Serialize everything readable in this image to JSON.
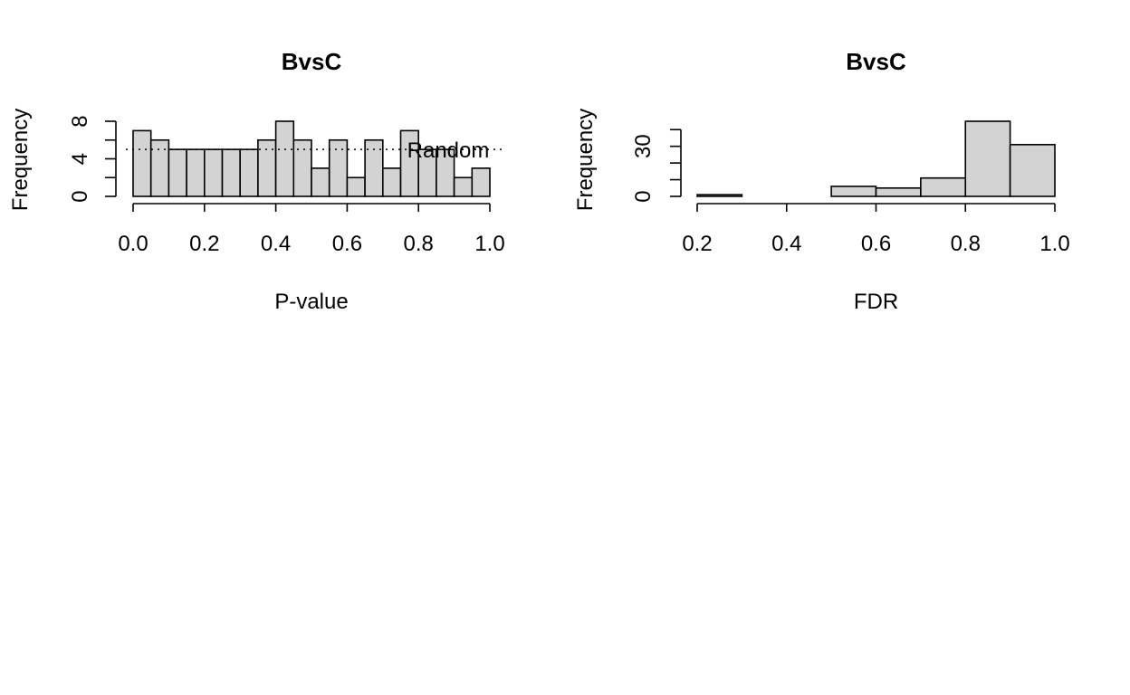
{
  "chart_data": [
    {
      "type": "bar",
      "title": "BvsC",
      "xlabel": "P-value",
      "ylabel": "Frequency",
      "bin_edges": [
        0.0,
        0.05,
        0.1,
        0.15,
        0.2,
        0.25,
        0.3,
        0.35,
        0.4,
        0.45,
        0.5,
        0.55,
        0.6,
        0.65,
        0.7,
        0.75,
        0.8,
        0.85,
        0.9,
        0.95,
        1.0
      ],
      "values": [
        7,
        6,
        5,
        5,
        5,
        5,
        5,
        6,
        8,
        6,
        3,
        6,
        2,
        6,
        3,
        7,
        5,
        5,
        2,
        3
      ],
      "xlim": [
        0.0,
        1.0
      ],
      "ylim": [
        0,
        8
      ],
      "x_ticks": [
        "0.0",
        "0.2",
        "0.4",
        "0.6",
        "0.8",
        "1.0"
      ],
      "y_ticks": [
        "0",
        "4",
        "8"
      ],
      "y_minor_ticks": [
        0,
        2,
        4,
        6,
        8
      ],
      "reference_line": {
        "y": 5.0,
        "label": "Random",
        "style": "dotted"
      },
      "grid": false
    },
    {
      "type": "bar",
      "title": "BvsC",
      "xlabel": "FDR",
      "ylabel": "Frequency",
      "bin_edges": [
        0.2,
        0.3,
        0.4,
        0.5,
        0.6,
        0.7,
        0.8,
        0.9,
        1.0
      ],
      "values": [
        1,
        0,
        0,
        6,
        5,
        11,
        45,
        31
      ],
      "xlim": [
        0.2,
        1.0
      ],
      "ylim": [
        0,
        45
      ],
      "x_ticks": [
        "0.2",
        "0.4",
        "0.6",
        "0.8",
        "1.0"
      ],
      "y_ticks": [
        "0",
        "30"
      ],
      "y_minor_ticks": [
        0,
        10,
        20,
        30,
        40
      ],
      "grid": false
    }
  ]
}
